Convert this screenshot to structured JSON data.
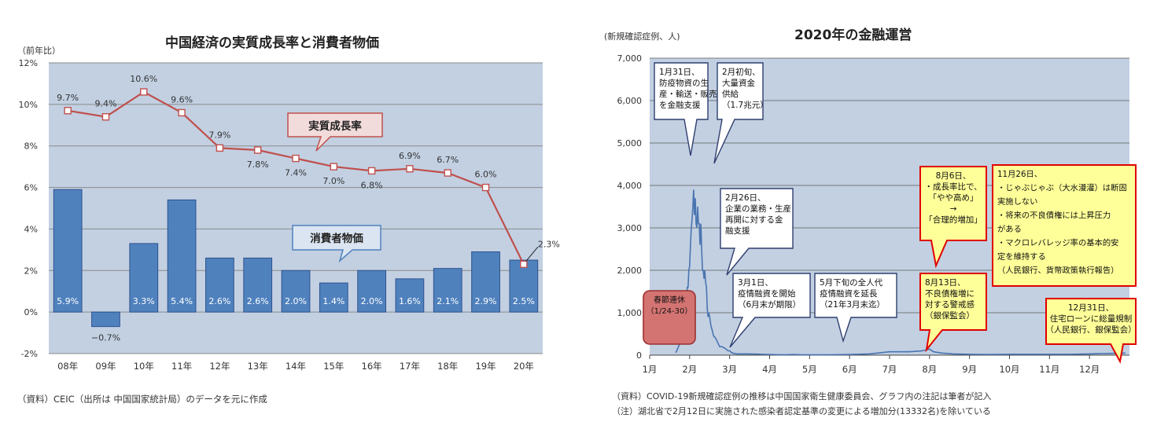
{
  "left": {
    "title": "中国経済の実質成長率と消費者物価",
    "unit": "（前年比）",
    "source": "（資料）CEIC（出所は 中国国家統計局）のデータを元に作成"
  },
  "right": {
    "title": "2020年の金融運営",
    "unit": "(新規確認症例、人)",
    "source_line1": "（資料）COVID-19新規確認症例の推移は中国国家衛生健康委員会、グラフ内の注記は筆者が記入",
    "source_line2": "（注）湖北省で2月12日に実施された感染者認定基準の変更による増加分(13332名)を除いている"
  },
  "colors": {
    "plot_bg": "#c2d0e2",
    "bar_fill": "#4f81bd",
    "bar_edge": "#2f528f",
    "line": "#c0504d",
    "callout_red_fill": "#f2dcdb",
    "callout_blue_fill": "#dbe5f1",
    "covid_line": "#4a74b0",
    "yellow_note": "#ffff99",
    "red_border": "#e00000",
    "holiday_fill": "#d47472"
  },
  "chart_data": [
    {
      "type": "bar",
      "categories": [
        "08年",
        "09年",
        "10年",
        "11年",
        "12年",
        "13年",
        "14年",
        "15年",
        "16年",
        "17年",
        "18年",
        "19年",
        "20年"
      ],
      "ylim": [
        -2,
        12
      ],
      "yticks": [
        "-2%",
        "0%",
        "2%",
        "4%",
        "6%",
        "8%",
        "10%",
        "12%"
      ],
      "grid": true,
      "series": [
        {
          "name": "消費者物価",
          "kind": "bar",
          "values": [
            5.9,
            -0.7,
            3.3,
            5.4,
            2.6,
            2.6,
            2.0,
            1.4,
            2.0,
            1.6,
            2.1,
            2.9,
            2.5
          ],
          "labels": [
            "5.9%",
            "−0.7%",
            "3.3%",
            "5.4%",
            "2.6%",
            "2.6%",
            "2.0%",
            "1.4%",
            "2.0%",
            "1.6%",
            "2.1%",
            "2.9%",
            "2.5%"
          ]
        },
        {
          "name": "実質成長率",
          "kind": "line",
          "values": [
            9.7,
            9.4,
            10.6,
            9.6,
            7.9,
            7.8,
            7.4,
            7.0,
            6.8,
            6.9,
            6.7,
            6.0,
            2.3
          ],
          "labels": [
            "9.7%",
            "9.4%",
            "10.6%",
            "9.6%",
            "7.9%",
            "7.8%",
            "7.4%",
            "7.0%",
            "6.8%",
            "6.9%",
            "6.7%",
            "6.0%",
            "2.3%"
          ]
        }
      ]
    },
    {
      "type": "line",
      "ylim": [
        0,
        7000
      ],
      "yticks": [
        "0",
        "1,000",
        "2,000",
        "3,000",
        "4,000",
        "5,000",
        "6,000",
        "7,000"
      ],
      "xticks": [
        "1月",
        "2月",
        "3月",
        "4月",
        "5月",
        "6月",
        "7月",
        "8月",
        "9月",
        "10月",
        "11月",
        "12月"
      ],
      "grid": true,
      "series": [
        {
          "x": [
            1.65,
            1.68,
            1.72,
            1.76,
            1.8,
            1.84,
            1.88,
            1.9,
            1.92,
            1.94,
            1.96,
            1.98,
            2.0,
            2.02,
            2.04,
            2.06,
            2.08,
            2.1,
            2.12,
            2.14,
            2.16,
            2.18,
            2.2,
            2.22,
            2.24,
            2.26,
            2.28,
            2.3,
            2.32,
            2.34,
            2.36,
            2.38,
            2.4,
            2.42,
            2.44,
            2.46,
            2.48,
            2.5,
            2.53,
            2.56,
            2.6,
            2.65,
            2.7,
            2.75,
            2.8,
            2.85,
            2.9,
            2.95,
            3.0,
            3.05,
            3.1,
            3.2,
            3.4,
            3.6,
            3.8,
            4.0,
            4.2,
            4.4,
            4.6,
            4.8,
            5.0,
            5.5,
            6.0,
            6.5,
            7.0,
            7.5,
            7.8,
            8.0,
            8.1,
            8.3,
            8.6,
            9.0,
            9.5,
            10.0,
            10.5,
            11.0,
            11.5,
            12.0,
            12.5,
            12.9
          ],
          "values": [
            60,
            110,
            200,
            280,
            450,
            580,
            700,
            1000,
            1300,
            1600,
            1600,
            2000,
            2100,
            2600,
            3000,
            3200,
            3500,
            3900,
            3300,
            3700,
            3100,
            3000,
            3500,
            3100,
            3100,
            2600,
            3100,
            2500,
            2000,
            2000,
            1800,
            2000,
            1700,
            1600,
            1100,
            900,
            1000,
            900,
            700,
            600,
            450,
            400,
            300,
            200,
            200,
            180,
            150,
            110,
            100,
            60,
            40,
            30,
            30,
            25,
            20,
            15,
            12,
            10,
            15,
            10,
            8,
            10,
            15,
            30,
            80,
            80,
            100,
            140,
            80,
            50,
            30,
            20,
            15,
            20,
            20,
            20,
            20,
            30,
            40,
            50
          ]
        }
      ]
    }
  ],
  "left_callouts": {
    "growth_label": "実質成長率",
    "cpi_label": "消費者物価"
  },
  "right_notes": {
    "holiday": [
      "春節連休",
      "（1/24-30）"
    ],
    "jan31": [
      "1月31日、",
      "防疫物資の生",
      "産・輸送・販売",
      "を金融支援"
    ],
    "feb_early": [
      "2月初旬、",
      "大量資金",
      "供給",
      "（1.7兆元）"
    ],
    "feb26": [
      "2月26日、",
      "企業の業務・生産",
      "再開に対する金",
      "融支援"
    ],
    "mar1": [
      "3月1日、",
      "疫情融資を開始",
      "（6月末が期限）"
    ],
    "may_late": [
      "5月下旬の全人代",
      "疫情融資を延長",
      "（21年3月末迄）"
    ],
    "aug6": [
      "8月6日、",
      "・成長率比で、",
      "「やや高め」",
      "→",
      "「合理的増加」"
    ],
    "aug13": [
      "8月13日、",
      "不良債権増に",
      "対する警戒感",
      "（銀保監会）"
    ],
    "nov26": [
      "11月26日、",
      "・じゃぶじゃぶ（大水漫灌）は断固",
      "実施しない",
      "・将来の不良債権には上昇圧力",
      "がある",
      "・マクロレバレッジ率の基本的安",
      "定を維持する",
      "（人民銀行、貨幣政策執行報告）"
    ],
    "dec31": [
      "12月31日、",
      "住宅ローンに総量規制",
      "（人民銀行、銀保監会）"
    ]
  }
}
